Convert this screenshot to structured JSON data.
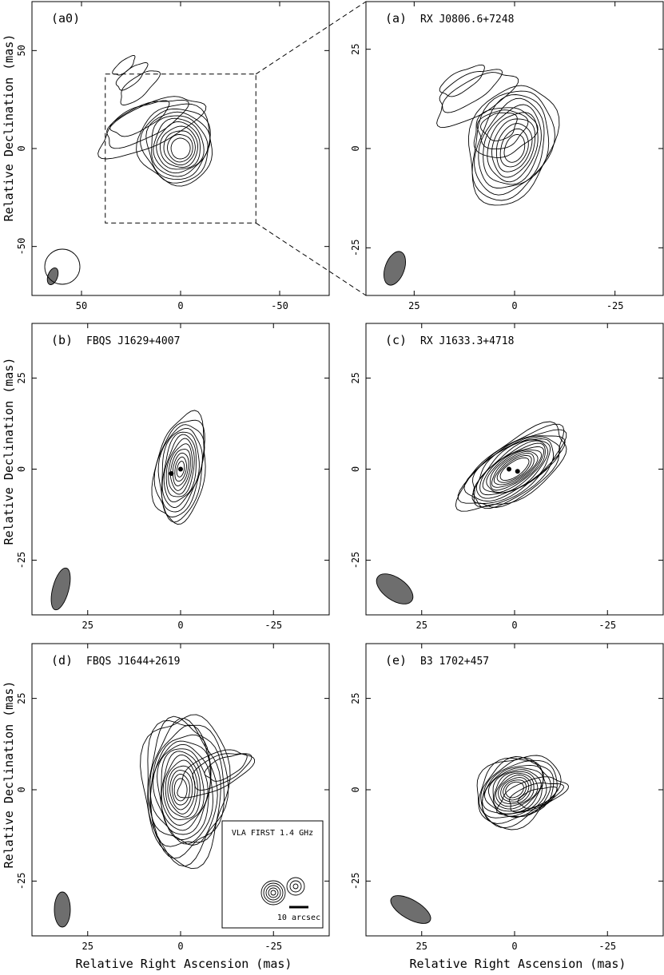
{
  "figure": {
    "ylabel": "Relative Declination (mas)",
    "xlabel": "Relative Right Ascension (mas)"
  },
  "chart_data": [
    {
      "id": "a0",
      "type": "contour",
      "tag": "(a0)",
      "source": "",
      "xlim": [
        75,
        -75
      ],
      "ylim": [
        -75,
        75
      ],
      "xticks": [
        50,
        0,
        -50
      ],
      "yticks": [
        50,
        0,
        -50
      ],
      "show_xlabel": false,
      "show_ylabel": true,
      "peak": [
        0,
        0
      ],
      "contour_count": 10,
      "beam_fill": "#6e6e6e",
      "zoom_box": {
        "x": [
          38,
          -38
        ],
        "y": [
          -38,
          38
        ]
      }
    },
    {
      "id": "a",
      "type": "contour",
      "tag": "(a)",
      "source": "RX J0806.6+7248",
      "xlim": [
        37,
        -37
      ],
      "ylim": [
        -37,
        37
      ],
      "xticks": [
        25,
        0,
        -25
      ],
      "yticks": [
        25,
        0,
        -25
      ],
      "show_xlabel": false,
      "show_ylabel": false,
      "peak": [
        0,
        0
      ],
      "contour_count": 10,
      "beam_fill": "#6e6e6e"
    },
    {
      "id": "b",
      "type": "contour",
      "tag": "(b)",
      "source": "FBQS J1629+4007",
      "xlim": [
        40,
        -40
      ],
      "ylim": [
        -40,
        40
      ],
      "xticks": [
        25,
        0,
        -25
      ],
      "yticks": [
        25,
        0,
        -25
      ],
      "show_xlabel": false,
      "show_ylabel": true,
      "peak": [
        0,
        0
      ],
      "contour_count": 12,
      "components": [
        [
          2.5,
          -1.2
        ],
        [
          0,
          0
        ]
      ],
      "beam_fill": "#6e6e6e"
    },
    {
      "id": "c",
      "type": "contour",
      "tag": "(c)",
      "source": "RX J1633.3+4718",
      "xlim": [
        40,
        -40
      ],
      "ylim": [
        -40,
        40
      ],
      "xticks": [
        25,
        0,
        -25
      ],
      "yticks": [
        25,
        0,
        -25
      ],
      "show_xlabel": false,
      "show_ylabel": false,
      "peak": [
        0,
        0
      ],
      "contour_count": 15,
      "components": [
        [
          1.5,
          0
        ],
        [
          -0.8,
          -0.6
        ]
      ],
      "beam_fill": "#6e6e6e"
    },
    {
      "id": "d",
      "type": "contour",
      "tag": "(d)",
      "source": "FBQS J1644+2619",
      "xlim": [
        40,
        -40
      ],
      "ylim": [
        -40,
        40
      ],
      "xticks": [
        25,
        0,
        -25
      ],
      "yticks": [
        25,
        0,
        -25
      ],
      "show_xlabel": true,
      "show_ylabel": true,
      "peak": [
        0,
        0
      ],
      "contour_count": 16,
      "beam_fill": "#6e6e6e",
      "inset": {
        "title": "VLA  FIRST  1.4 GHz",
        "scalebar": "10 arcsec"
      }
    },
    {
      "id": "e",
      "type": "contour",
      "tag": "(e)",
      "source": "B3 1702+457",
      "xlim": [
        40,
        -40
      ],
      "ylim": [
        -40,
        40
      ],
      "xticks": [
        25,
        0,
        -25
      ],
      "yticks": [
        25,
        0,
        -25
      ],
      "show_xlabel": true,
      "show_ylabel": false,
      "peak": [
        0,
        0
      ],
      "contour_count": 14,
      "beam_fill": "#6e6e6e"
    }
  ]
}
